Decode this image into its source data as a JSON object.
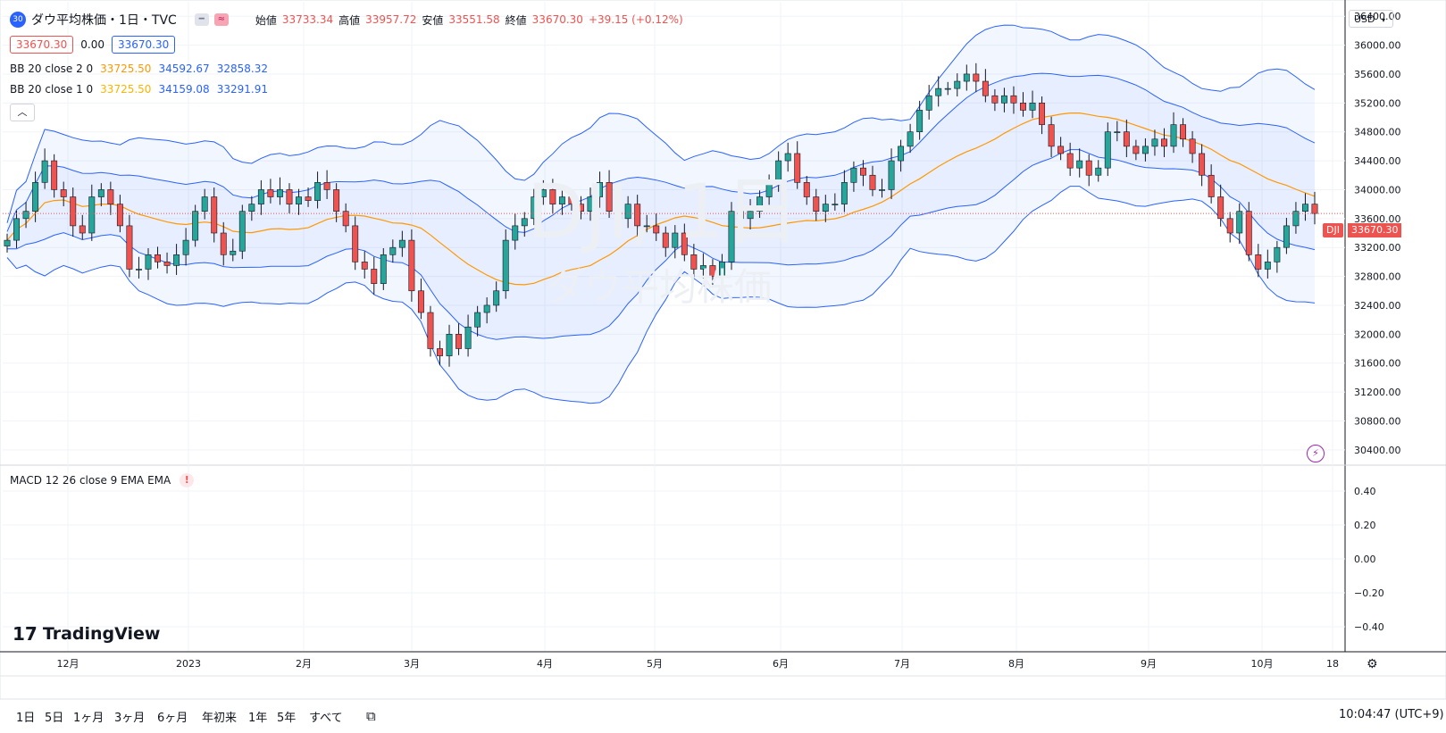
{
  "symbol": {
    "badge": "30",
    "title": "ダウ平均株価・1日・TVC",
    "ohlc": {
      "open_label": "始値",
      "open": "33733.34",
      "high_label": "高値",
      "high": "33957.72",
      "low_label": "安値",
      "low": "33551.58",
      "close_label": "終値",
      "close": "33670.30",
      "change": "+39.15 (+0.12%)"
    }
  },
  "price_boxes": {
    "sell": "33670.30",
    "spread": "0.00",
    "buy": "33670.30"
  },
  "indicators": [
    {
      "label": "BB 20 close 2 0",
      "basis": "33725.50",
      "upper": "34592.67",
      "lower": "32858.32"
    },
    {
      "label": "BB 20 close 1 0",
      "basis": "33725.50",
      "upper": "34159.08",
      "lower": "33291.91"
    }
  ],
  "macd": {
    "label": "MACD 12 26 close 9 EMA EMA",
    "warning": "!"
  },
  "watermark": {
    "symbol": "DJI, 1日",
    "name": "ダウ平均株価"
  },
  "currency": "USD",
  "last_price_tag": {
    "symbol": "DJI",
    "price": "33670.30"
  },
  "price_axis": [
    "36400.00",
    "36000.00",
    "35600.00",
    "35200.00",
    "34800.00",
    "34400.00",
    "34000.00",
    "33600.00",
    "33200.00",
    "32800.00",
    "32400.00",
    "32000.00",
    "31600.00",
    "31200.00",
    "30800.00",
    "30400.00"
  ],
  "macd_axis": [
    "0.40",
    "0.20",
    "0.00",
    "−0.20",
    "−0.40"
  ],
  "time_axis": [
    "12月",
    "2023",
    "2月",
    "3月",
    "4月",
    "5月",
    "6月",
    "7月",
    "8月",
    "9月",
    "10月",
    "18"
  ],
  "ranges": [
    "1日",
    "5日",
    "1ヶ月",
    "3ヶ月",
    "6ヶ月",
    "年初来",
    "1年",
    "5年",
    "すべて"
  ],
  "clock": "10:04:47 (UTC+9)",
  "logo": "TradingView",
  "colors": {
    "up": "#26a69a",
    "down": "#ef5350",
    "basis": "#ff9800",
    "band": "#2962ff",
    "grid": "#f0f3fa"
  },
  "chart_data": {
    "type": "candlestick",
    "title": "ダウ平均株価・1日・TVC",
    "ylim": [
      30200,
      36600
    ],
    "x": [
      "12月",
      "2023",
      "2月",
      "3月",
      "4月",
      "5月",
      "6月",
      "7月",
      "8月",
      "9月",
      "10月",
      "18"
    ],
    "close_series": [
      33300,
      33600,
      33700,
      34100,
      34400,
      34000,
      33900,
      33500,
      33400,
      33900,
      34000,
      33800,
      33500,
      32900,
      32900,
      33100,
      33000,
      32950,
      33100,
      33300,
      33700,
      33900,
      33400,
      33100,
      33150,
      33700,
      33800,
      34000,
      33900,
      34000,
      33800,
      33900,
      33850,
      34100,
      34000,
      33700,
      33500,
      33000,
      32900,
      32700,
      33100,
      33200,
      33300,
      32600,
      32300,
      31800,
      31700,
      32000,
      31800,
      32100,
      32300,
      32400,
      32600,
      33300,
      33500,
      33600,
      33900,
      34000,
      33800,
      33900,
      33800,
      33700,
      33900,
      34100,
      33700,
      33600,
      33800,
      33500,
      33500,
      33400,
      33200,
      33400,
      33100,
      32900,
      32950,
      32800,
      33000,
      33700,
      33600,
      33700,
      33900,
      34100,
      34400,
      34500,
      34100,
      33900,
      33700,
      33800,
      33800,
      34100,
      34300,
      34200,
      34000,
      34000,
      34400,
      34600,
      34800,
      35100,
      35300,
      35400,
      35400,
      35500,
      35600,
      35500,
      35300,
      35200,
      35300,
      35200,
      35100,
      35200,
      34900,
      34600,
      34500,
      34300,
      34400,
      34200,
      34300,
      34800,
      34800,
      34600,
      34500,
      34600,
      34700,
      34600,
      34900,
      34700,
      34500,
      34200,
      33900,
      33600,
      33400,
      33700,
      33100,
      32900,
      33000,
      33200,
      33500,
      33700,
      33800,
      33670
    ],
    "bb2": {
      "upper": 34592.67,
      "basis": 33725.5,
      "lower": 32858.32
    },
    "bb1": {
      "upper": 34159.08,
      "basis": 33725.5,
      "lower": 33291.91
    },
    "last": 33670.3
  }
}
